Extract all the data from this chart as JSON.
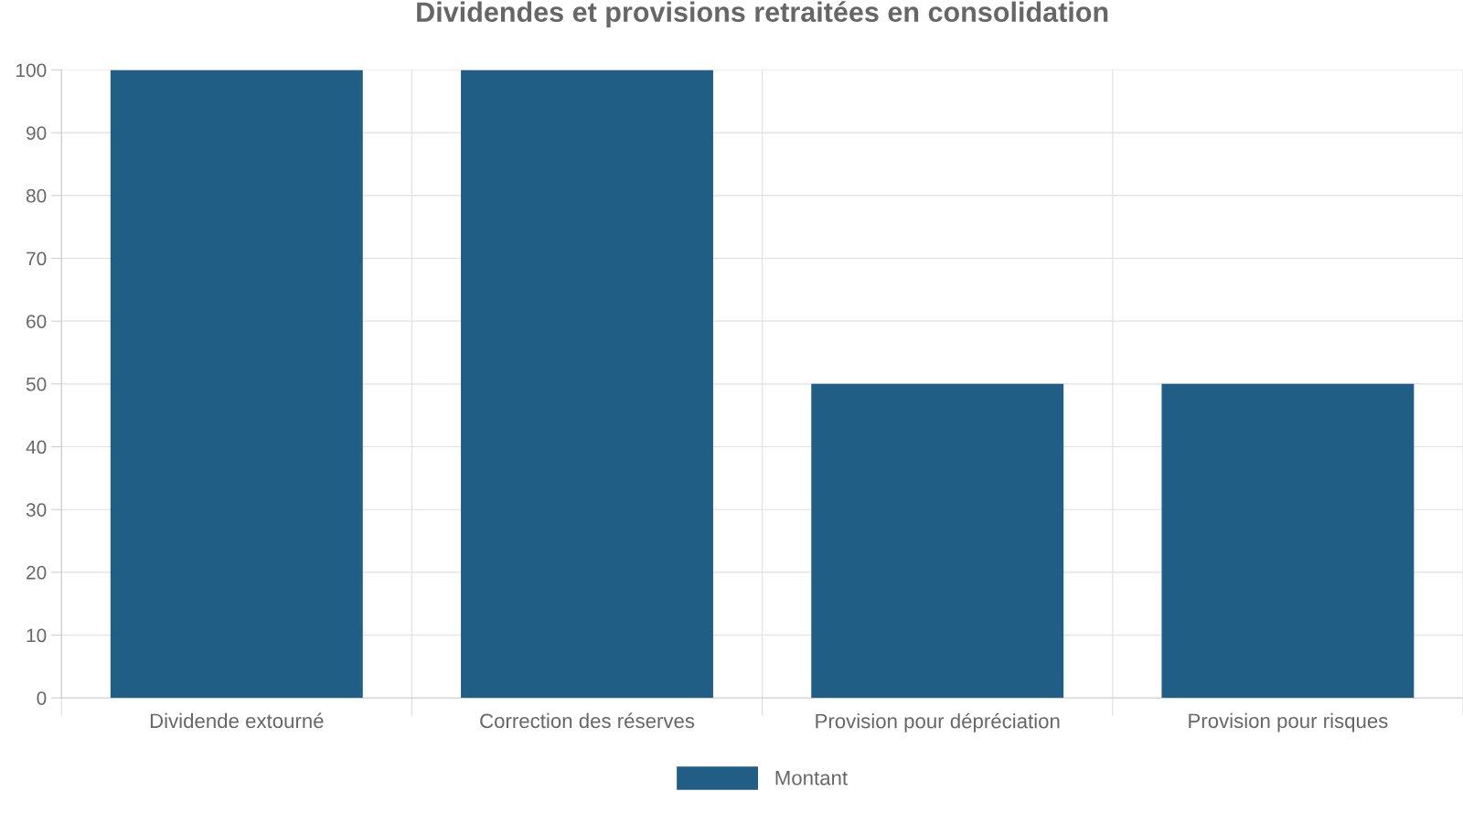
{
  "chart_data": {
    "type": "bar",
    "title": "Dividendes et provisions retraitées en consolidation",
    "categories": [
      "Dividende extourné",
      "Correction des réserves",
      "Provision pour dépréciation",
      "Provision pour risques"
    ],
    "series": [
      {
        "name": "Montant",
        "color": "#215e86",
        "values": [
          100,
          100,
          50,
          50
        ]
      }
    ],
    "ylim": [
      0,
      100
    ],
    "yticks": [
      0,
      10,
      20,
      30,
      40,
      50,
      60,
      70,
      80,
      90,
      100
    ],
    "grid": true,
    "legend": "bottom"
  }
}
